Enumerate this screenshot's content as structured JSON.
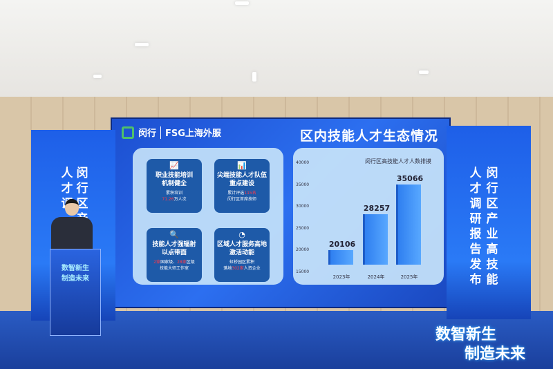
{
  "screen": {
    "logo_minhang": "闵行",
    "logo_fsg": "FSG上海外服",
    "title": "区内技能人才生态情况",
    "cards": [
      {
        "icon": "chart-monitor-icon",
        "heading_1": "职业技能培训",
        "heading_2": "机制健全",
        "line_1": "累积培训",
        "line_2_highlight": "71.26",
        "line_2_rest": "万人次"
      },
      {
        "icon": "bar-chart-monitor-icon",
        "heading_1": "尖端技能人才队伍",
        "heading_2": "重点建设",
        "line_1_pre": "累计评选",
        "line_1_highlight": "115名",
        "line_2": "闵行区首席技师"
      },
      {
        "icon": "search-monitor-icon",
        "heading_1": "技能人才强辐射",
        "heading_2": "以点带面",
        "line_1_h1": "2家",
        "line_1_a": "国家级、",
        "line_1_h2": "28家",
        "line_1_b": "区级",
        "line_2": "技能大师工作室"
      },
      {
        "icon": "hand-pie-icon",
        "heading_1": "区域人才服务高地",
        "heading_2": "激活动能",
        "line_1": "虹桥园区累积",
        "line_2_pre": "落地",
        "line_2_highlight": "302家",
        "line_2_rest": "人资企业"
      }
    ]
  },
  "chart_data": {
    "type": "bar",
    "title": "闵行区高技能人才人数排摸",
    "categories": [
      "2023年",
      "2024年",
      "2025年"
    ],
    "values": [
      20106,
      28257,
      35066
    ],
    "ylim": [
      15000,
      40000
    ],
    "yticks": [
      "40000",
      "35000",
      "30000",
      "25000",
      "20000",
      "15000"
    ],
    "grid": false,
    "bar_color": "#3b8cf5"
  },
  "left_banner": {
    "col_1": "闵行区产",
    "col_2": "人才调"
  },
  "right_banner": {
    "col_1": "闵行区产业高技能",
    "col_2": "人才调研报告发布"
  },
  "podium": {
    "line_1": "数智新生",
    "line_2": "制造未来"
  },
  "slogan": {
    "line_1": "数智新生",
    "line_2": "制造未来"
  }
}
